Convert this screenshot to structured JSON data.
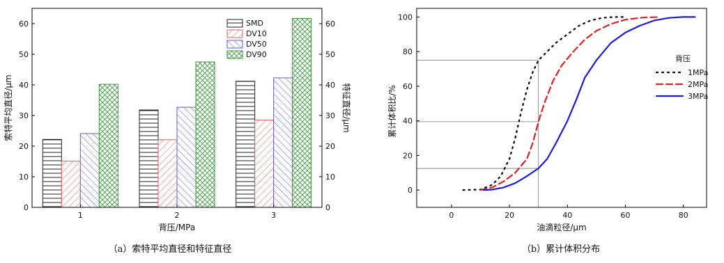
{
  "chart_data": [
    {
      "type": "bar",
      "caption": "（a）索特平均直径和特征直径",
      "categories": [
        "1",
        "2",
        "3"
      ],
      "xlabel": "背压/MPa",
      "ylabel": "索特平均直径/μm",
      "y2label": "特征直径/μm",
      "ylim": [
        0,
        65
      ],
      "yticks": [
        0,
        10,
        20,
        30,
        40,
        50,
        60
      ],
      "legend_position": "top-right",
      "series": [
        {
          "name": "SMD",
          "values": [
            22.2,
            31.8,
            41.2
          ],
          "color": "#222222",
          "pattern": "horizontal"
        },
        {
          "name": "DV10",
          "values": [
            15.1,
            22.1,
            28.5
          ],
          "color": "#e06060",
          "pattern": "diag-right"
        },
        {
          "name": "DV50",
          "values": [
            24.1,
            32.7,
            42.3
          ],
          "color": "#5a5ae0",
          "pattern": "diag-left"
        },
        {
          "name": "DV90",
          "values": [
            40.2,
            47.5,
            61.7
          ],
          "color": "#3a9a3a",
          "pattern": "crosshatch"
        }
      ]
    },
    {
      "type": "line",
      "caption": "（b）累计体积分布",
      "xlabel": "油滴粒径/μm",
      "ylabel": "累计体积比/%",
      "xlim": [
        -12,
        88
      ],
      "ylim": [
        -10,
        105
      ],
      "xticks": [
        0,
        20,
        40,
        60,
        80
      ],
      "yticks": [
        0,
        20,
        40,
        60,
        80,
        100
      ],
      "legend_title": "背压",
      "legend_position": "right",
      "reference_x": 30,
      "reference_y": [
        75,
        39.5,
        12.5
      ],
      "series": [
        {
          "name": "1MPa",
          "color": "#000000",
          "dash": "dot",
          "points": [
            [
              4,
              0
            ],
            [
              10,
              0.3
            ],
            [
              14,
              3
            ],
            [
              17,
              8
            ],
            [
              20,
              18
            ],
            [
              22,
              30
            ],
            [
              24,
              45
            ],
            [
              26,
              58
            ],
            [
              28,
              68
            ],
            [
              30,
              75
            ],
            [
              33,
              80
            ],
            [
              36,
              85
            ],
            [
              40,
              90
            ],
            [
              44,
              95
            ],
            [
              48,
              98
            ],
            [
              52,
              99.5
            ],
            [
              56,
              100
            ],
            [
              60,
              100
            ]
          ]
        },
        {
          "name": "2MPa",
          "color": "#e02020",
          "dash": "dash",
          "points": [
            [
              10,
              0
            ],
            [
              14,
              1.5
            ],
            [
              18,
              5
            ],
            [
              22,
              10
            ],
            [
              26,
              18
            ],
            [
              28,
              27
            ],
            [
              30,
              39.5
            ],
            [
              32,
              50
            ],
            [
              35,
              63
            ],
            [
              38,
              72
            ],
            [
              42,
              80
            ],
            [
              46,
              87
            ],
            [
              50,
              92
            ],
            [
              55,
              96
            ],
            [
              60,
              98.5
            ],
            [
              66,
              99.7
            ],
            [
              72,
              100
            ]
          ]
        },
        {
          "name": "3MPa",
          "color": "#1a1adb",
          "dash": "solid",
          "points": [
            [
              11,
              0
            ],
            [
              14,
              0.2
            ],
            [
              18,
              1.5
            ],
            [
              22,
              4
            ],
            [
              26,
              8
            ],
            [
              30,
              12.5
            ],
            [
              33,
              18
            ],
            [
              36,
              27
            ],
            [
              40,
              40
            ],
            [
              43,
              52
            ],
            [
              46,
              65
            ],
            [
              50,
              75
            ],
            [
              55,
              85
            ],
            [
              60,
              91
            ],
            [
              65,
              95
            ],
            [
              70,
              98
            ],
            [
              75,
              99.5
            ],
            [
              80,
              100
            ],
            [
              84,
              100
            ]
          ]
        }
      ]
    }
  ]
}
